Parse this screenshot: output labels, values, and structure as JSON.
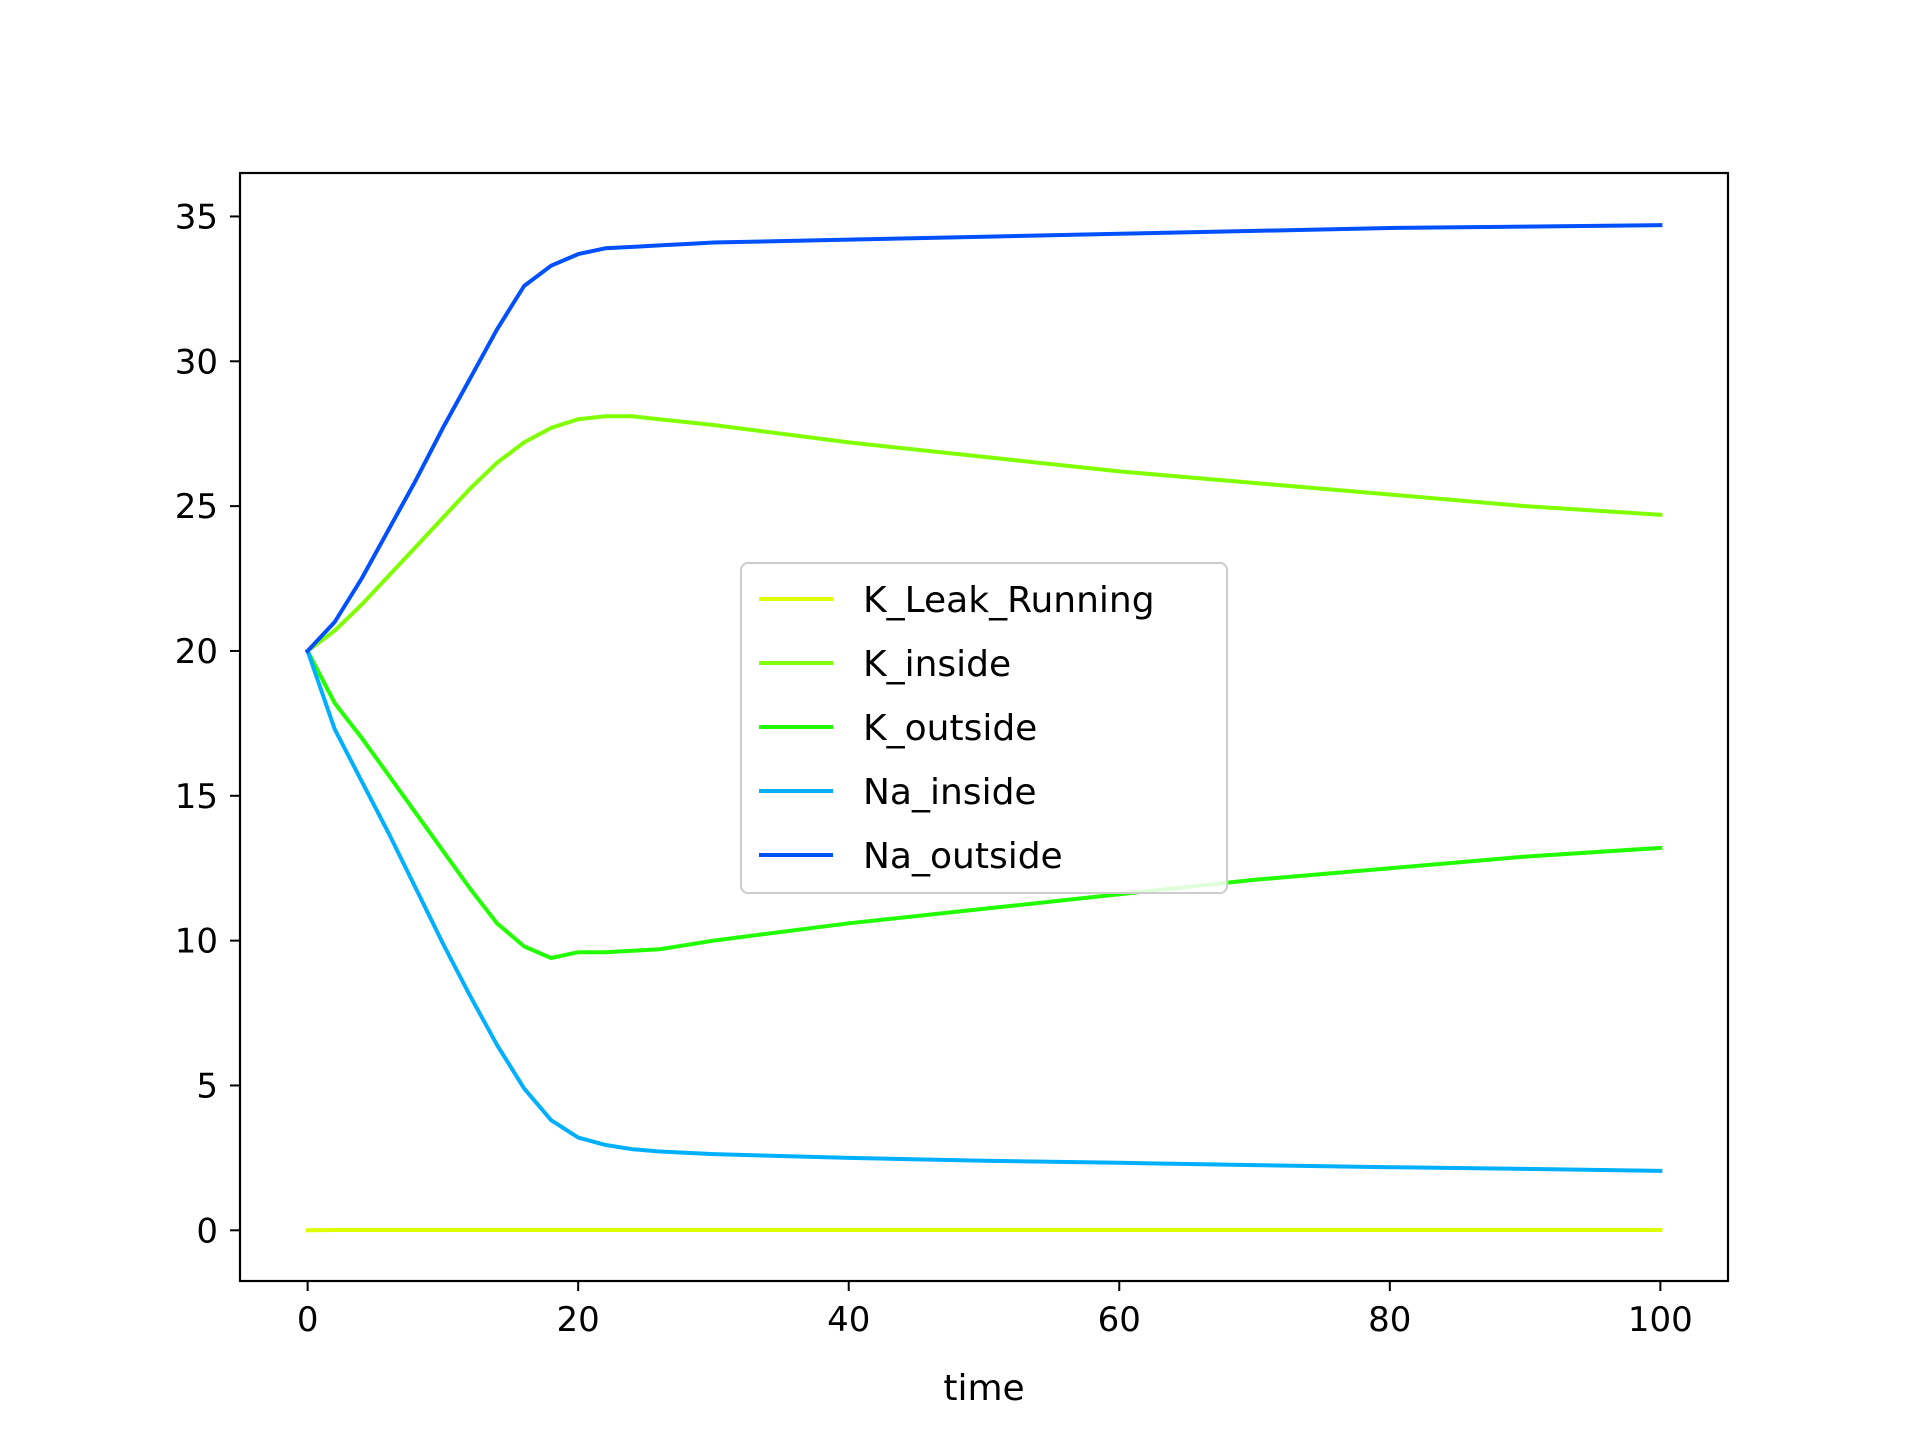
{
  "chart_data": {
    "type": "line",
    "title": "",
    "xlabel": "time",
    "ylabel": "",
    "xlim": [
      -5,
      105
    ],
    "ylim": [
      -1.75,
      36.5
    ],
    "x_ticks": [
      0,
      20,
      40,
      60,
      80,
      100
    ],
    "y_ticks": [
      0,
      5,
      10,
      15,
      20,
      25,
      30,
      35
    ],
    "x_tick_labels": [
      "0",
      "20",
      "40",
      "60",
      "80",
      "100"
    ],
    "y_tick_labels": [
      "0",
      "5",
      "10",
      "15",
      "20",
      "25",
      "30",
      "35"
    ],
    "grid": false,
    "legend_position": "center",
    "series": [
      {
        "name": "K_Leak_Running",
        "color": "#ddff00",
        "x": [
          0,
          2,
          4,
          10,
          20,
          30,
          40,
          60,
          80,
          100
        ],
        "y": [
          0,
          0.01,
          0.01,
          0.01,
          0.01,
          0.01,
          0.01,
          0.01,
          0.01,
          0.01
        ]
      },
      {
        "name": "K_inside",
        "color": "#80ff00",
        "x": [
          0,
          2,
          4,
          6,
          8,
          10,
          12,
          14,
          16,
          18,
          20,
          22,
          24,
          26,
          30,
          40,
          50,
          60,
          70,
          80,
          90,
          100
        ],
        "y": [
          20,
          20.7,
          21.6,
          22.6,
          23.6,
          24.6,
          25.6,
          26.5,
          27.2,
          27.7,
          28.0,
          28.1,
          28.1,
          28.0,
          27.8,
          27.2,
          26.7,
          26.2,
          25.8,
          25.4,
          25.0,
          24.7
        ]
      },
      {
        "name": "K_outside",
        "color": "#22ff00",
        "x": [
          0,
          2,
          4,
          6,
          8,
          10,
          12,
          14,
          16,
          18,
          20,
          22,
          24,
          26,
          30,
          40,
          50,
          60,
          70,
          80,
          90,
          100
        ],
        "y": [
          20,
          18.2,
          17.0,
          15.7,
          14.4,
          13.1,
          11.8,
          10.6,
          9.8,
          9.4,
          9.6,
          9.6,
          9.65,
          9.7,
          10.0,
          10.6,
          11.1,
          11.6,
          12.1,
          12.5,
          12.9,
          13.2
        ]
      },
      {
        "name": "Na_inside",
        "color": "#00b0ff",
        "x": [
          0,
          2,
          4,
          6,
          8,
          10,
          12,
          14,
          16,
          18,
          20,
          22,
          24,
          26,
          30,
          40,
          50,
          60,
          70,
          80,
          90,
          100
        ],
        "y": [
          20,
          17.3,
          15.5,
          13.7,
          11.8,
          9.9,
          8.1,
          6.4,
          4.9,
          3.8,
          3.2,
          2.95,
          2.8,
          2.72,
          2.63,
          2.5,
          2.4,
          2.33,
          2.25,
          2.18,
          2.12,
          2.05
        ]
      },
      {
        "name": "Na_outside",
        "color": "#0050ff",
        "x": [
          0,
          2,
          4,
          6,
          8,
          10,
          12,
          14,
          16,
          18,
          20,
          22,
          24,
          26,
          28,
          30,
          40,
          50,
          60,
          70,
          80,
          90,
          100
        ],
        "y": [
          20,
          21.0,
          22.5,
          24.2,
          25.9,
          27.7,
          29.4,
          31.1,
          32.6,
          33.3,
          33.7,
          33.9,
          33.95,
          34.0,
          34.05,
          34.1,
          34.2,
          34.3,
          34.4,
          34.5,
          34.6,
          34.65,
          34.7
        ]
      }
    ]
  }
}
